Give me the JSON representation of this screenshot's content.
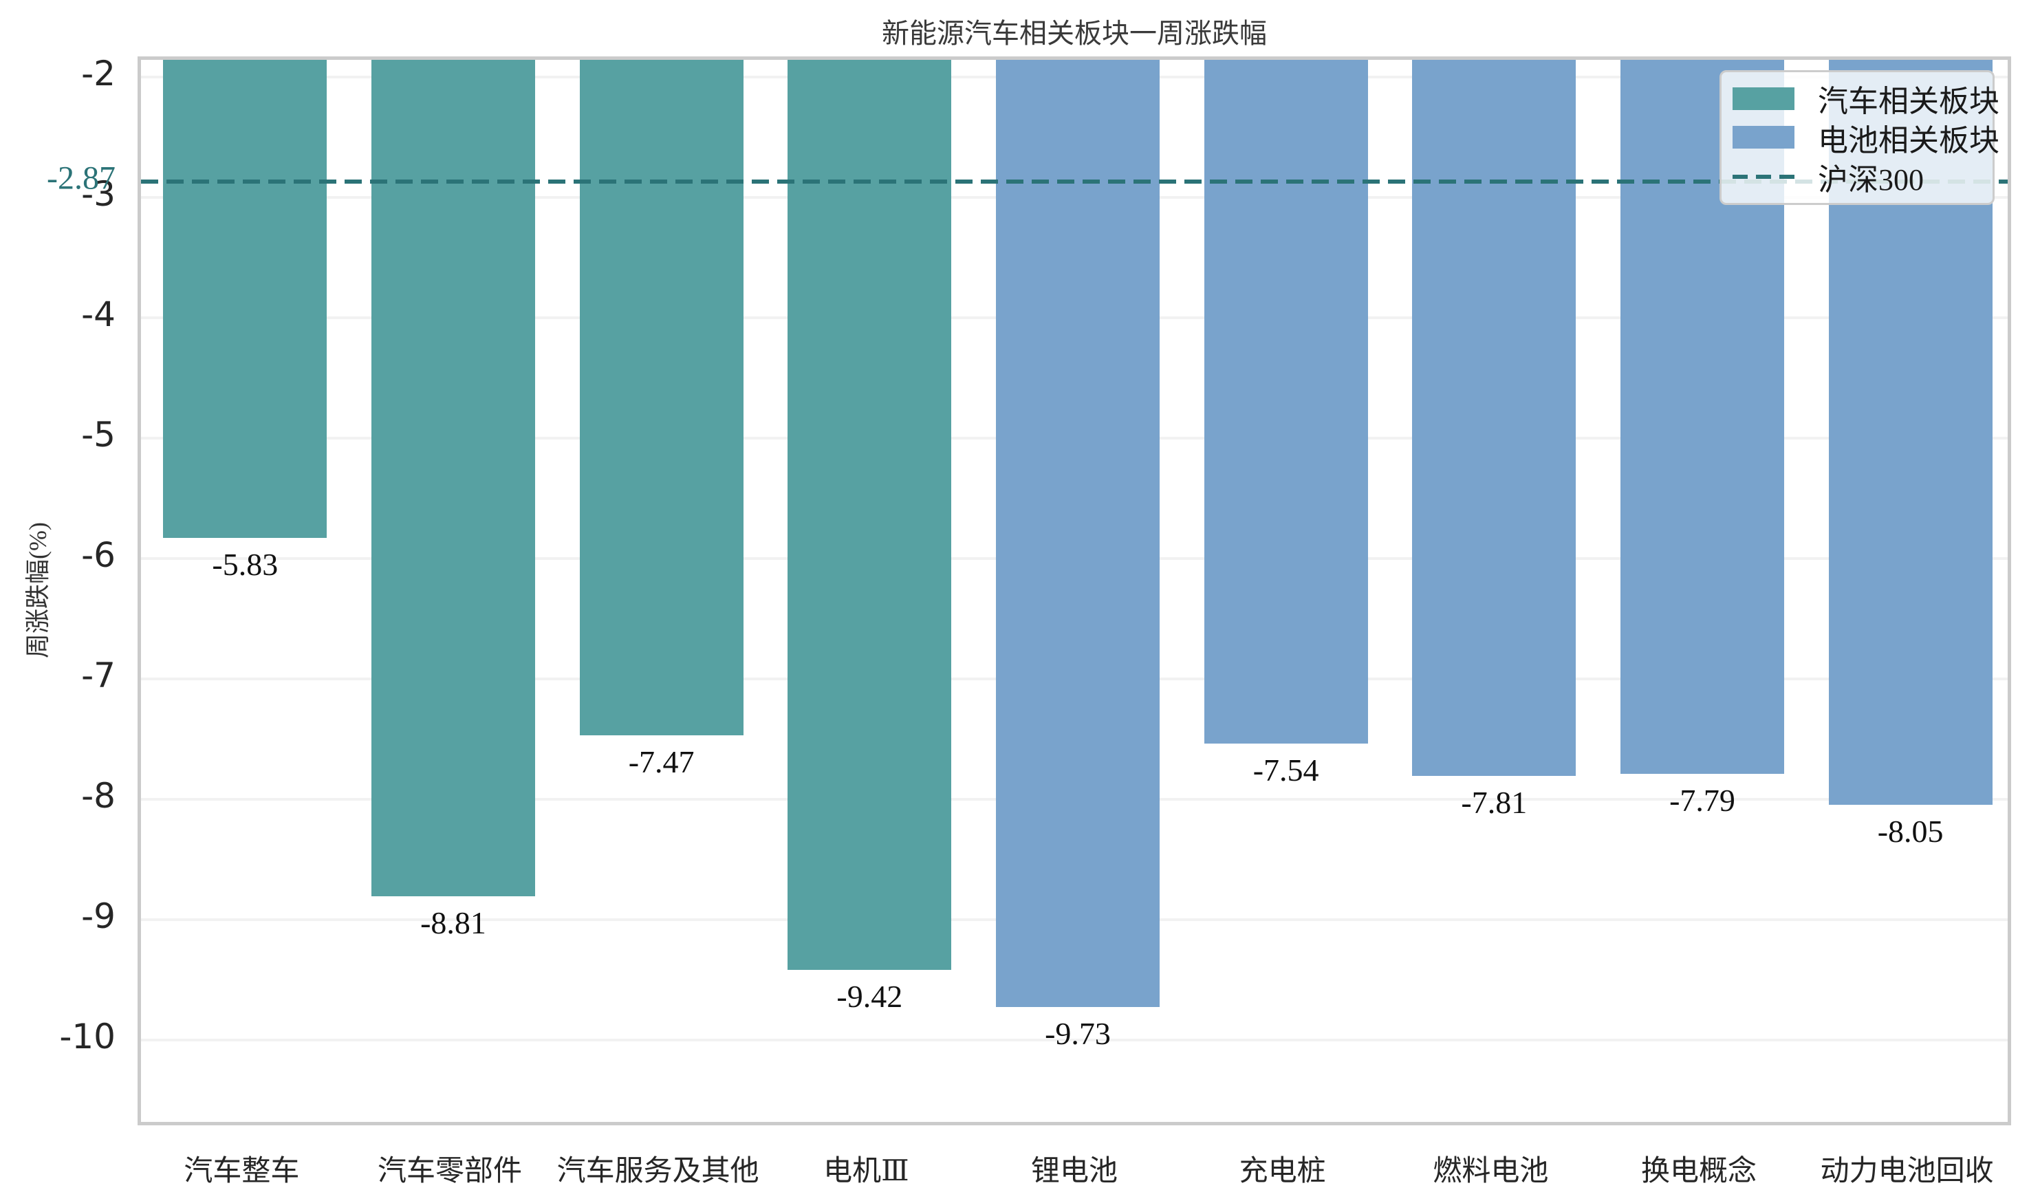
{
  "chart_data": {
    "type": "bar",
    "title": "新能源汽车相关板块一周涨跌幅",
    "xlabel": "",
    "ylabel": "周涨跌幅(%)",
    "categories": [
      "汽车整车",
      "汽车零部件",
      "汽车服务及其他",
      "电机Ⅲ",
      "锂电池",
      "充电桩",
      "燃料电池",
      "换电概念",
      "动力电池回收"
    ],
    "values": [
      -5.83,
      -8.81,
      -7.47,
      -9.42,
      -9.73,
      -7.54,
      -7.81,
      -7.79,
      -8.05
    ],
    "value_labels": [
      "-5.83",
      "-8.81",
      "-7.47",
      "-9.42",
      "-9.73",
      "-7.54",
      "-7.81",
      "-7.79",
      "-8.05"
    ],
    "series": [
      {
        "name": "汽车相关板块",
        "color": "#57a1a2"
      },
      {
        "name": "电池相关板块",
        "color": "#79a3cc"
      }
    ],
    "series_index": [
      0,
      0,
      0,
      0,
      1,
      1,
      1,
      1,
      1
    ],
    "reference_line": {
      "name": "沪深300",
      "value": -2.87,
      "label": "-2.87",
      "color": "#2b7377",
      "style": "dashed"
    },
    "yticks": [
      -2,
      -3,
      -4,
      -5,
      -6,
      -7,
      -8,
      -9,
      -10
    ],
    "ytick_labels": [
      "-2",
      "-3",
      "-4",
      "-5",
      "-6",
      "-7",
      "-8",
      "-9",
      "-10"
    ],
    "ylim": [
      -10.74,
      -1.86
    ],
    "grid": "horizontal",
    "legend_position": "top-right",
    "legend": {
      "entries": [
        {
          "label": "汽车相关板块",
          "key": "swatch",
          "color": "#57a1a2"
        },
        {
          "label": "电池相关板块",
          "key": "swatch",
          "color": "#79a3cc"
        },
        {
          "label": "沪深300",
          "key": "dashed-line",
          "color": "#2b7377"
        }
      ]
    },
    "colors": {
      "auto_sector_bar": "#57a1a2",
      "battery_sector_bar": "#79a3cc",
      "reference_line": "#2b7377",
      "gridline": "#f2f2f2",
      "spine": "#cbcbcb",
      "tick_text": "#262626",
      "background": "#ffffff"
    }
  }
}
